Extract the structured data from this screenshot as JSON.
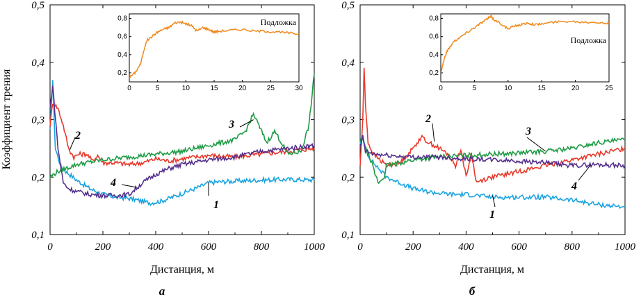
{
  "chart_data": [
    {
      "type": "line",
      "panel_label": "а",
      "xlabel": "Дистанция, м",
      "ylabel": "Коэффициент трения",
      "xlim": [
        0,
        1000
      ],
      "ylim": [
        0.1,
        0.5
      ],
      "xticks": [
        "0",
        "200",
        "400",
        "600",
        "800",
        "1000"
      ],
      "yticks": [
        "0,1",
        "0,2",
        "0,3",
        "0,4",
        "0,5"
      ],
      "series": [
        {
          "name": "1",
          "color": "#1aa3e0",
          "x": [
            0,
            10,
            20,
            40,
            60,
            100,
            150,
            200,
            250,
            300,
            350,
            380,
            420,
            480,
            520,
            560,
            600,
            650,
            700,
            800,
            900,
            1000
          ],
          "y": [
            0.28,
            0.37,
            0.25,
            0.22,
            0.21,
            0.195,
            0.18,
            0.17,
            0.165,
            0.163,
            0.158,
            0.155,
            0.158,
            0.168,
            0.175,
            0.182,
            0.19,
            0.192,
            0.193,
            0.195,
            0.196,
            0.195
          ]
        },
        {
          "name": "2",
          "color": "#e8392b",
          "x": [
            0,
            10,
            30,
            50,
            70,
            90,
            110,
            140,
            160,
            180,
            200,
            250,
            300,
            350,
            400,
            450,
            500,
            600,
            700,
            800,
            900,
            1000
          ],
          "y": [
            0.29,
            0.33,
            0.32,
            0.29,
            0.25,
            0.235,
            0.24,
            0.24,
            0.228,
            0.238,
            0.225,
            0.225,
            0.222,
            0.225,
            0.232,
            0.228,
            0.232,
            0.238,
            0.235,
            0.24,
            0.245,
            0.25
          ]
        },
        {
          "name": "3",
          "color": "#1e9b45",
          "x": [
            0,
            30,
            60,
            100,
            150,
            200,
            300,
            400,
            500,
            600,
            700,
            740,
            770,
            790,
            820,
            850,
            870,
            900,
            950,
            980,
            1000
          ],
          "y": [
            0.2,
            0.21,
            0.215,
            0.222,
            0.226,
            0.23,
            0.235,
            0.24,
            0.245,
            0.255,
            0.265,
            0.28,
            0.31,
            0.29,
            0.26,
            0.28,
            0.265,
            0.24,
            0.245,
            0.29,
            0.38
          ]
        },
        {
          "name": "4",
          "color": "#55308d",
          "x": [
            0,
            10,
            30,
            50,
            70,
            100,
            150,
            200,
            250,
            300,
            350,
            400,
            450,
            500,
            600,
            700,
            800,
            900,
            1000
          ],
          "y": [
            0.32,
            0.36,
            0.25,
            0.19,
            0.18,
            0.175,
            0.17,
            0.168,
            0.168,
            0.17,
            0.19,
            0.205,
            0.215,
            0.222,
            0.23,
            0.235,
            0.245,
            0.25,
            0.255
          ]
        }
      ],
      "inset": {
        "label": "Подложка",
        "color": "#f0891a",
        "xlim": [
          0,
          30
        ],
        "ylim": [
          0.1,
          0.85
        ],
        "xticks": [
          "0",
          "5",
          "10",
          "15",
          "20",
          "25",
          "30"
        ],
        "yticks": [
          "0,2",
          "0,4",
          "0,6",
          "0,8"
        ],
        "x": [
          0,
          1,
          2,
          3,
          4,
          5,
          6,
          7,
          8,
          9,
          10,
          11,
          12,
          13,
          14,
          15,
          16,
          18,
          20,
          22,
          24,
          26,
          28,
          30
        ],
        "y": [
          0.15,
          0.2,
          0.3,
          0.55,
          0.6,
          0.65,
          0.68,
          0.7,
          0.75,
          0.76,
          0.74,
          0.72,
          0.66,
          0.7,
          0.68,
          0.65,
          0.66,
          0.67,
          0.68,
          0.66,
          0.66,
          0.65,
          0.64,
          0.63
        ]
      }
    },
    {
      "type": "line",
      "panel_label": "б",
      "xlabel": "Дистанция, м",
      "xlim": [
        0,
        1000
      ],
      "ylim": [
        0.1,
        0.5
      ],
      "xticks": [
        "0",
        "200",
        "400",
        "600",
        "800",
        "1000"
      ],
      "yticks": [
        "0,1",
        "0,2",
        "0,3",
        "0,4",
        "0,5"
      ],
      "series": [
        {
          "name": "1",
          "color": "#1aa3e0",
          "x": [
            0,
            10,
            20,
            40,
            60,
            100,
            150,
            200,
            250,
            300,
            350,
            400,
            500,
            600,
            700,
            800,
            900,
            1000
          ],
          "y": [
            0.26,
            0.27,
            0.25,
            0.23,
            0.22,
            0.2,
            0.19,
            0.18,
            0.175,
            0.172,
            0.17,
            0.17,
            0.165,
            0.165,
            0.165,
            0.16,
            0.152,
            0.148
          ]
        },
        {
          "name": "2",
          "color": "#e8392b",
          "x": [
            0,
            10,
            15,
            20,
            30,
            50,
            100,
            150,
            200,
            230,
            260,
            300,
            330,
            360,
            380,
            400,
            420,
            440,
            460,
            500,
            600,
            700,
            800,
            900,
            1000
          ],
          "y": [
            0.22,
            0.3,
            0.39,
            0.33,
            0.26,
            0.24,
            0.22,
            0.225,
            0.25,
            0.27,
            0.26,
            0.25,
            0.24,
            0.22,
            0.25,
            0.2,
            0.24,
            0.19,
            0.195,
            0.2,
            0.21,
            0.22,
            0.23,
            0.24,
            0.25
          ]
        },
        {
          "name": "3",
          "color": "#1e9b45",
          "x": [
            0,
            10,
            20,
            40,
            60,
            70,
            90,
            100,
            150,
            200,
            300,
            400,
            500,
            600,
            700,
            800,
            900,
            1000
          ],
          "y": [
            0.26,
            0.27,
            0.25,
            0.23,
            0.2,
            0.19,
            0.2,
            0.22,
            0.225,
            0.23,
            0.235,
            0.238,
            0.24,
            0.242,
            0.245,
            0.25,
            0.26,
            0.265
          ]
        },
        {
          "name": "4",
          "color": "#55308d",
          "x": [
            0,
            10,
            20,
            50,
            100,
            150,
            200,
            300,
            400,
            500,
            600,
            700,
            800,
            900,
            1000
          ],
          "y": [
            0.25,
            0.27,
            0.245,
            0.24,
            0.238,
            0.236,
            0.235,
            0.235,
            0.232,
            0.23,
            0.228,
            0.225,
            0.22,
            0.222,
            0.22
          ]
        }
      ],
      "inset": {
        "label": "Подложка",
        "color": "#f0891a",
        "xlim": [
          0,
          25
        ],
        "ylim": [
          0.1,
          0.85
        ],
        "xticks": [
          "0",
          "5",
          "10",
          "15",
          "20",
          "25"
        ],
        "yticks": [
          "0,2",
          "0,4",
          "0,6",
          "0,8"
        ],
        "x": [
          0,
          0.5,
          1,
          2,
          3,
          4,
          5,
          6,
          7,
          7.5,
          8,
          9,
          10,
          11,
          12,
          13,
          14,
          15,
          17,
          19,
          21,
          23,
          24,
          25
        ],
        "y": [
          0.2,
          0.35,
          0.45,
          0.55,
          0.6,
          0.65,
          0.7,
          0.75,
          0.8,
          0.82,
          0.78,
          0.74,
          0.68,
          0.72,
          0.73,
          0.75,
          0.73,
          0.74,
          0.76,
          0.77,
          0.76,
          0.76,
          0.75,
          0.75
        ]
      }
    }
  ],
  "annotations": {
    "panel_a": [
      "1",
      "2",
      "3",
      "4"
    ],
    "panel_b": [
      "1",
      "2",
      "3",
      "4"
    ]
  }
}
